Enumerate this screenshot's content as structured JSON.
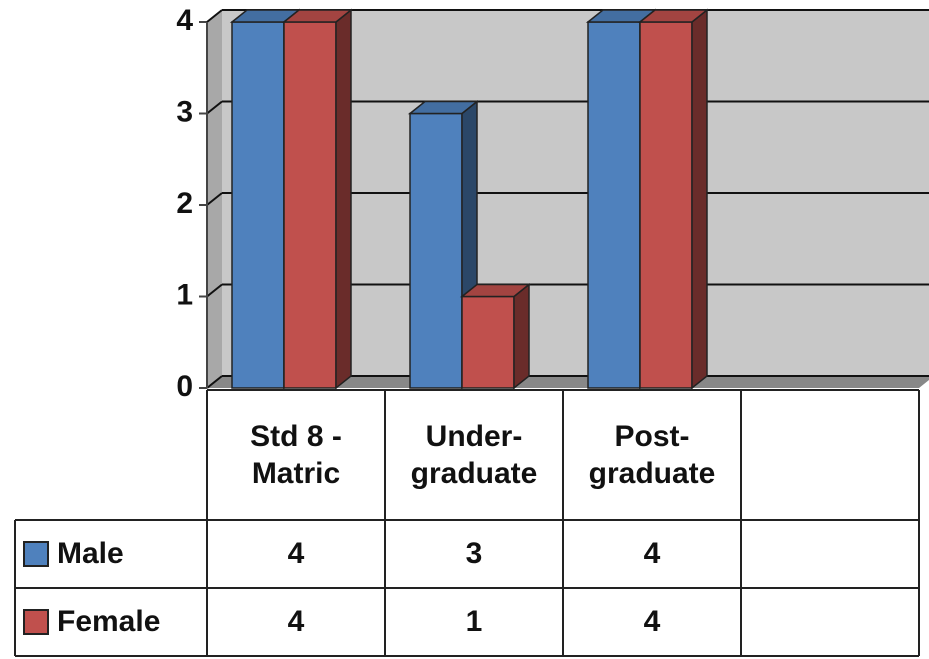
{
  "chart_data": {
    "type": "bar3d",
    "categories": [
      "Std 8 - Matric",
      "Under-graduate",
      "Post-graduate",
      null
    ],
    "series": [
      {
        "name": "Male",
        "color": "#4f81bd",
        "values": [
          4,
          3,
          4,
          null
        ]
      },
      {
        "name": "Female",
        "color": "#c0504d",
        "values": [
          4,
          1,
          4,
          null
        ]
      }
    ],
    "ylim": [
      0,
      4
    ],
    "yticks": [
      0,
      1,
      2,
      3,
      4
    ],
    "grid": true,
    "legend": "table"
  }
}
